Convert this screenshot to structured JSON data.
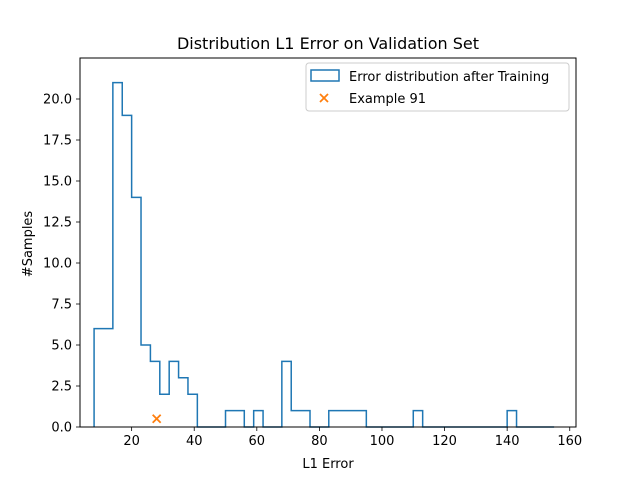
{
  "chart_data": {
    "type": "histogram",
    "title": "Distribution L1 Error on Validation Set",
    "xlabel": "L1 Error",
    "ylabel": "#Samples",
    "xlim": [
      3.5,
      162
    ],
    "ylim": [
      0,
      22.5
    ],
    "xticks": [
      20,
      40,
      60,
      80,
      100,
      120,
      140,
      160
    ],
    "yticks": [
      0.0,
      2.5,
      5.0,
      7.5,
      10.0,
      12.5,
      15.0,
      17.5,
      20.0
    ],
    "grid": false,
    "legend_position": "upper right",
    "histogram": {
      "name": "Error distribution after Training",
      "color": "#1f77b4",
      "style": "step",
      "bin_start": 8,
      "bin_width": 3,
      "counts": [
        6,
        6,
        21,
        19,
        14,
        5,
        4,
        2,
        4,
        3,
        2,
        0,
        0,
        0,
        1,
        1,
        0,
        1,
        0,
        0,
        4,
        1,
        1,
        0,
        0,
        1,
        1,
        1,
        1,
        0,
        0,
        0,
        0,
        0,
        1,
        0,
        0,
        0,
        0,
        0,
        0,
        0,
        0,
        0,
        1,
        0,
        0,
        0,
        0
      ]
    },
    "marker": {
      "name": "Example 91",
      "color": "#ff7f0e",
      "symbol": "x",
      "x": 28,
      "y": 0.5
    }
  }
}
